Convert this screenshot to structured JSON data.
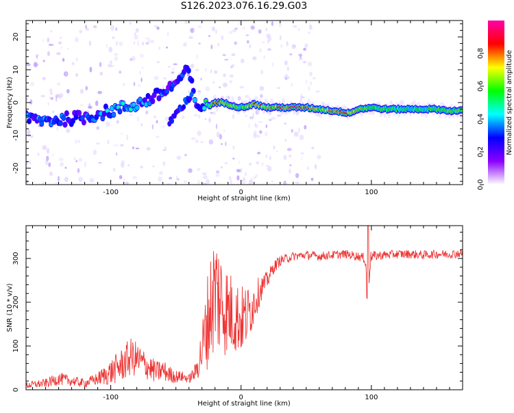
{
  "figure_title": "S126.2023.076.16.29.G03",
  "chart_data": [
    {
      "type": "heatmap",
      "title": "",
      "xlabel": "Height of straight line (km)",
      "ylabel": "Frequency (Hz)",
      "xlim": [
        -165,
        170
      ],
      "ylim": [
        -25,
        25
      ],
      "xticks": [
        -100,
        0,
        100
      ],
      "yticks": [
        -20,
        -10,
        0,
        10,
        20
      ],
      "colorbar": {
        "label": "Normalized spectral amplitude",
        "range": [
          0,
          1
        ],
        "ticks": [
          "0.0",
          "0.2",
          "0.4",
          "0.6",
          "0.8"
        ],
        "colormap": [
          "#ffffff",
          "#8b00ff",
          "#0000ff",
          "#00ffff",
          "#00ff00",
          "#ffff00",
          "#ff0000",
          "#ff00aa"
        ]
      },
      "ridge": {
        "x": [
          -165,
          -150,
          -135,
          -120,
          -110,
          -100,
          -90,
          -80,
          -70,
          -60,
          -55,
          -50,
          -45,
          -40,
          -35,
          -30,
          -25,
          -20,
          -15,
          -10,
          -5,
          0,
          5,
          10,
          20,
          30,
          40,
          50,
          60,
          70,
          80,
          85,
          90,
          100,
          110,
          120,
          130,
          140,
          150,
          160,
          170
        ],
        "y": [
          -5,
          -5.5,
          -5,
          -4.5,
          -3.5,
          -2.5,
          -1.5,
          -0.5,
          1,
          3,
          4.5,
          6,
          8,
          10,
          -1,
          -1,
          -1,
          0,
          0,
          -0.5,
          -1,
          -1.5,
          -1,
          -0.5,
          -1.5,
          -1.5,
          -1.5,
          -1.5,
          -2,
          -2.5,
          -3,
          -3,
          -2,
          -1.5,
          -2,
          -2,
          -2,
          -2,
          -2,
          -2.5,
          -2.5
        ],
        "amplitude": [
          0.3,
          0.3,
          0.3,
          0.3,
          0.32,
          0.33,
          0.35,
          0.35,
          0.3,
          0.3,
          0.25,
          0.25,
          0.25,
          0.25,
          0.3,
          0.35,
          0.5,
          0.9,
          0.7,
          0.6,
          0.6,
          0.5,
          0.7,
          0.9,
          0.7,
          0.8,
          0.9,
          0.85,
          0.6,
          0.8,
          0.9,
          0.7,
          0.7,
          0.5,
          0.6,
          0.5,
          0.5,
          0.5,
          0.55,
          0.6,
          0.6
        ]
      }
    },
    {
      "type": "line",
      "title": "",
      "xlabel": "Height of straight line (km)",
      "ylabel": "SNR (10 * v/v)",
      "xlim": [
        -165,
        170
      ],
      "ylim": [
        0,
        375
      ],
      "xticks": [
        -100,
        0,
        100
      ],
      "yticks": [
        0,
        100,
        200,
        300
      ],
      "color": "#ee3333",
      "series": [
        {
          "x": [
            -165,
            -150,
            -140,
            -130,
            -120,
            -110,
            -100,
            -90,
            -85,
            -80,
            -75,
            -70,
            -65,
            -60,
            -55,
            -50,
            -45,
            -40,
            -35,
            -30,
            -25,
            -20,
            -15,
            -10,
            -5,
            0,
            5,
            10,
            15,
            20,
            25,
            30,
            40,
            50,
            60,
            70,
            80,
            90,
            95,
            97,
            100,
            110,
            120,
            130,
            140,
            150,
            160,
            170
          ],
          "y": [
            10,
            15,
            25,
            20,
            15,
            25,
            40,
            60,
            75,
            70,
            60,
            50,
            40,
            45,
            35,
            30,
            30,
            25,
            40,
            90,
            170,
            230,
            200,
            180,
            170,
            160,
            170,
            200,
            230,
            250,
            280,
            295,
            305,
            308,
            305,
            308,
            310,
            305,
            300,
            260,
            305,
            308,
            310,
            310,
            308,
            310,
            310,
            312
          ],
          "noise": [
            8,
            10,
            15,
            12,
            10,
            15,
            30,
            40,
            45,
            40,
            35,
            30,
            25,
            25,
            20,
            15,
            12,
            10,
            20,
            60,
            120,
            150,
            130,
            100,
            90,
            80,
            70,
            50,
            30,
            20,
            15,
            12,
            10,
            10,
            10,
            10,
            10,
            10,
            12,
            60,
            12,
            10,
            10,
            10,
            10,
            10,
            10,
            10
          ]
        }
      ]
    }
  ]
}
